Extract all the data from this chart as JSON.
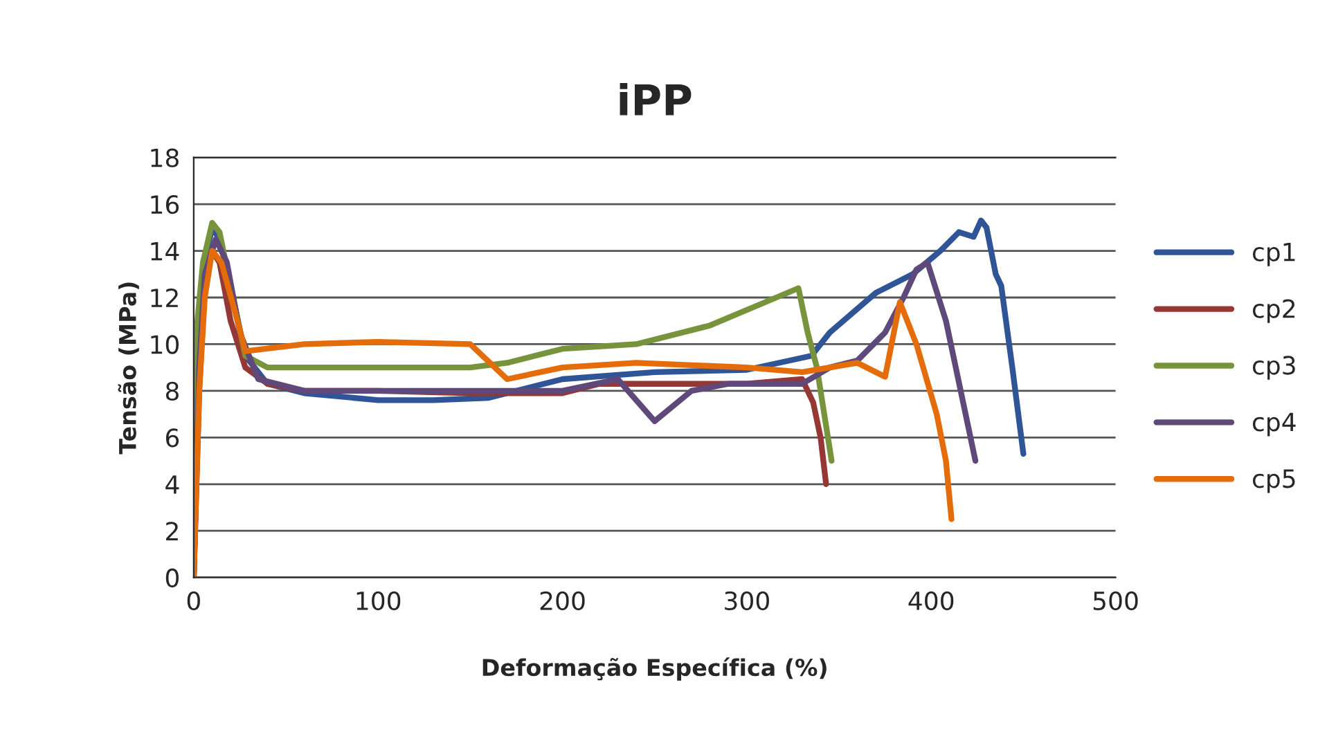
{
  "chart_data": {
    "type": "line",
    "title": "iPP",
    "xlabel": "Deformação Específica (%)",
    "ylabel": "Tensão (MPa)",
    "xlim": [
      0,
      500
    ],
    "xticks": [
      0,
      100,
      200,
      300,
      400,
      500
    ],
    "ylim": [
      0,
      18
    ],
    "yticks": [
      0,
      2,
      4,
      6,
      8,
      10,
      12,
      14,
      16,
      18
    ],
    "grid": "y",
    "legend": "right",
    "marker": "none",
    "line_style": "solid",
    "series": [
      {
        "name": "cp1",
        "color": "#2f5597",
        "x": [
          0,
          3,
          6,
          10,
          14,
          20,
          28,
          40,
          60,
          100,
          130,
          160,
          200,
          250,
          300,
          335,
          345,
          370,
          390,
          405,
          415,
          423,
          427,
          430,
          435,
          438,
          444,
          450
        ],
        "values": [
          0,
          9,
          13.5,
          15.0,
          14.5,
          12.5,
          9.5,
          8.3,
          7.9,
          7.6,
          7.6,
          7.7,
          8.5,
          8.8,
          8.9,
          9.5,
          10.5,
          12.2,
          13.0,
          14.0,
          14.8,
          14.6,
          15.3,
          15.0,
          13.0,
          12.5,
          9.0,
          5.3
        ]
      },
      {
        "name": "cp2",
        "color": "#953735",
        "x": [
          0,
          3,
          6,
          10,
          14,
          20,
          28,
          40,
          60,
          100,
          150,
          200,
          220,
          260,
          300,
          330,
          336,
          340,
          343
        ],
        "values": [
          0,
          8,
          12.5,
          14.0,
          13.5,
          11.0,
          9.0,
          8.3,
          8.0,
          8.0,
          7.9,
          7.9,
          8.3,
          8.3,
          8.3,
          8.5,
          7.5,
          6.0,
          4.0
        ]
      },
      {
        "name": "cp3",
        "color": "#77933c",
        "x": [
          0,
          2,
          5,
          10,
          14,
          20,
          28,
          40,
          80,
          150,
          170,
          200,
          240,
          280,
          310,
          328,
          333,
          338,
          342,
          346
        ],
        "values": [
          0,
          11,
          13.5,
          15.2,
          14.8,
          12.5,
          9.5,
          9.0,
          9.0,
          9.0,
          9.2,
          9.8,
          10.0,
          10.8,
          11.8,
          12.4,
          10.5,
          9.0,
          7.0,
          5.0
        ]
      },
      {
        "name": "cp4",
        "color": "#5f497a",
        "x": [
          0,
          3,
          6,
          12,
          18,
          25,
          35,
          60,
          100,
          160,
          200,
          230,
          250,
          270,
          290,
          330,
          345,
          360,
          375,
          385,
          392,
          398,
          408,
          416,
          424
        ],
        "values": [
          0,
          9,
          13,
          14.5,
          13.5,
          10.5,
          8.5,
          8.0,
          8.0,
          8.0,
          8.0,
          8.5,
          6.7,
          8.0,
          8.3,
          8.3,
          9.0,
          9.3,
          10.5,
          12.0,
          13.2,
          13.5,
          11.0,
          8.0,
          5.0
        ]
      },
      {
        "name": "cp5",
        "color": "#e46c0a",
        "x": [
          0,
          3,
          6,
          10,
          15,
          22,
          28,
          60,
          100,
          150,
          170,
          200,
          240,
          300,
          330,
          345,
          360,
          375,
          383,
          392,
          403,
          408,
          411
        ],
        "values": [
          0,
          8,
          12,
          14.0,
          13.5,
          11.5,
          9.7,
          10.0,
          10.1,
          10.0,
          8.5,
          9.0,
          9.2,
          9.0,
          8.8,
          9.0,
          9.2,
          8.6,
          11.8,
          10.0,
          7.0,
          5.0,
          2.5
        ]
      }
    ]
  }
}
